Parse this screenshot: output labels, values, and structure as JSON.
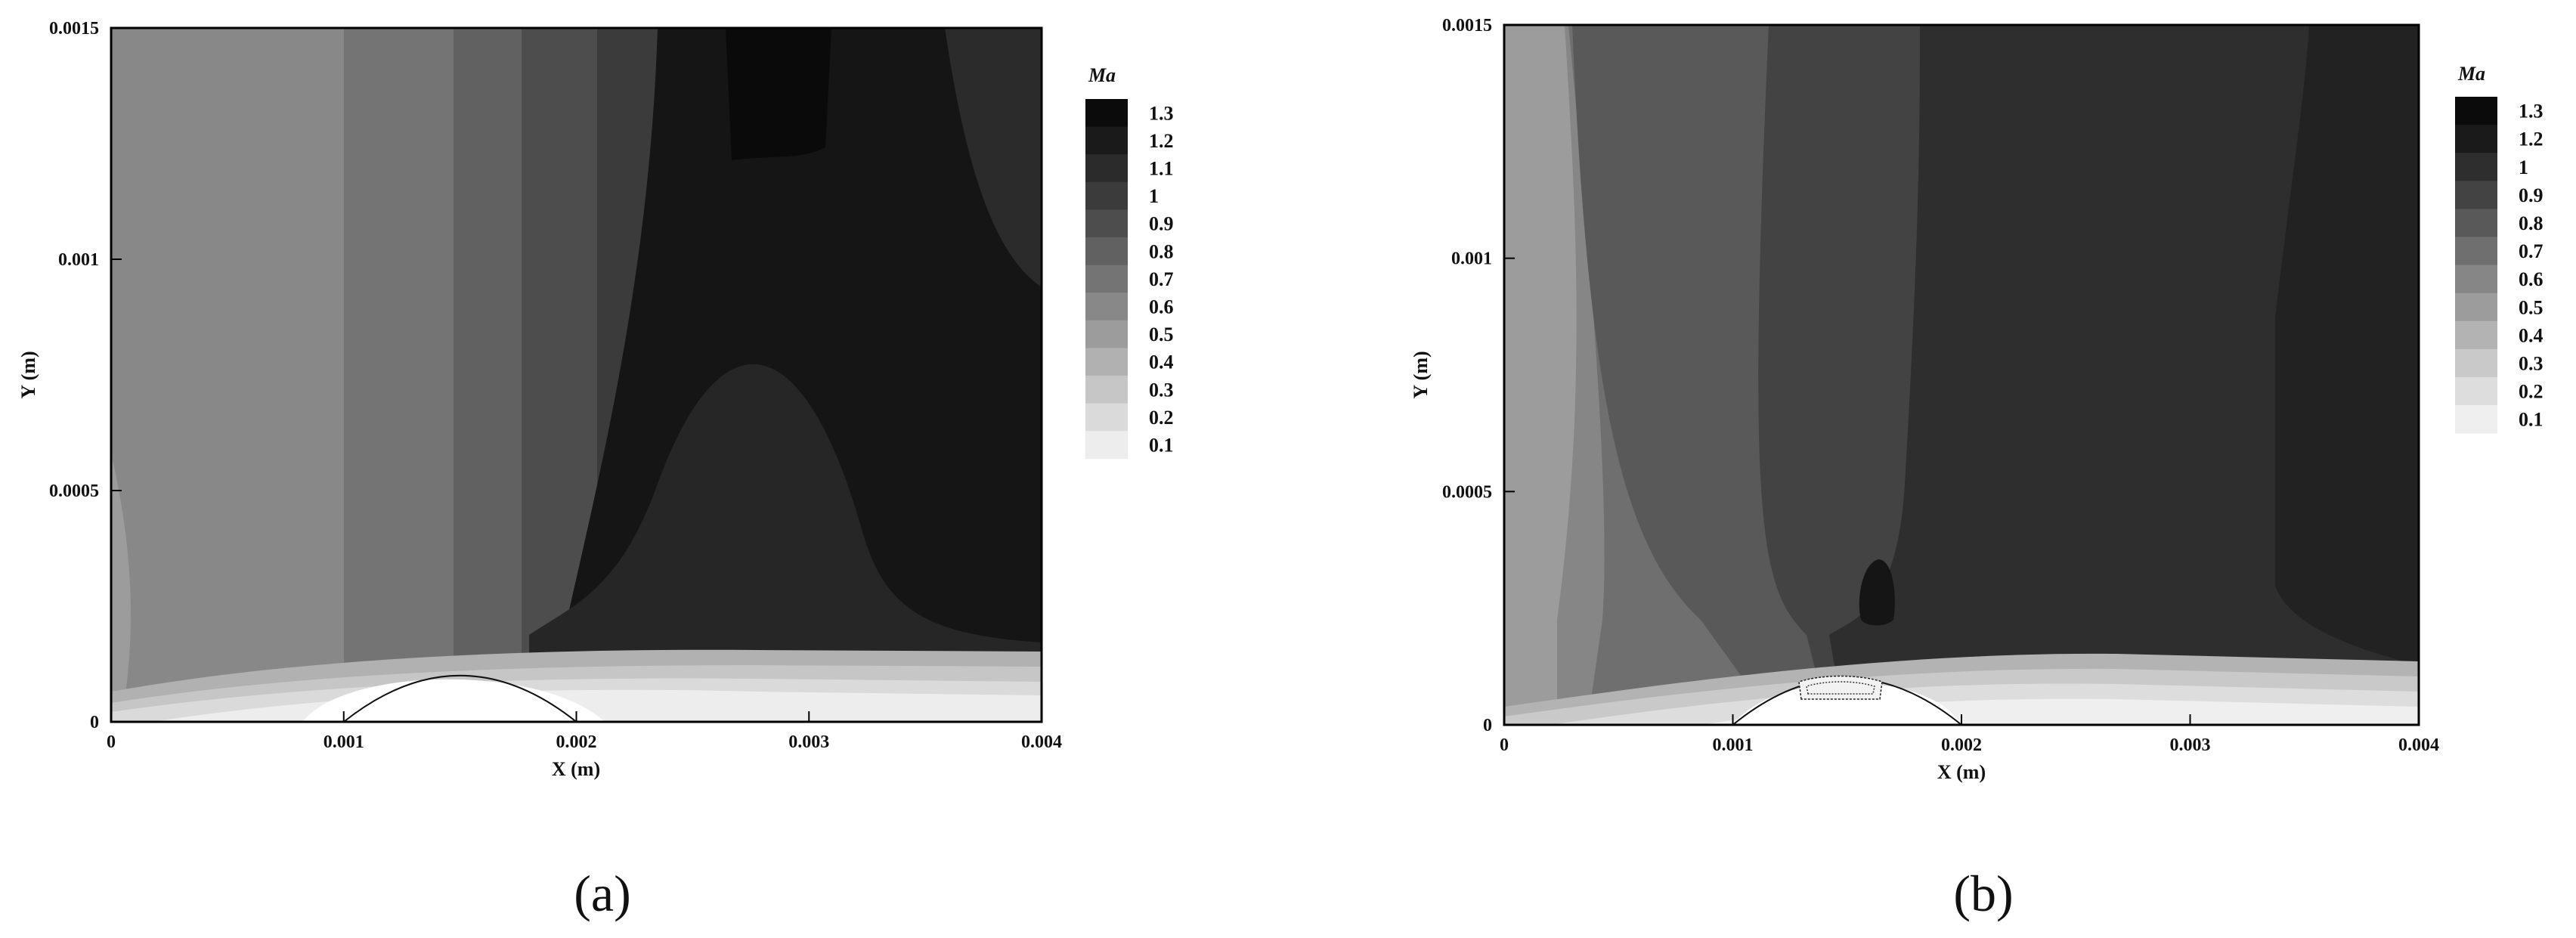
{
  "chart_data": [
    {
      "type": "heatmap",
      "caption": "(a)",
      "xlabel": "X (m)",
      "ylabel": "Y (m)",
      "xlim": [
        0,
        0.004
      ],
      "ylim": [
        0,
        0.0015
      ],
      "xticks": [
        "0",
        "0.001",
        "0.002",
        "0.003",
        "0.004"
      ],
      "yticks": [
        "0",
        "0.0005",
        "0.001",
        "0.0015"
      ],
      "legend": {
        "title": "Ma",
        "placement": "right",
        "levels": [
          "1.3",
          "1.2",
          "1.1",
          "1",
          "0.9",
          "0.8",
          "0.7",
          "0.6",
          "0.5",
          "0.4",
          "0.3",
          "0.2",
          "0.1"
        ],
        "colors": [
          "#0b0b0b",
          "#1a1a1a",
          "#2b2b2b",
          "#3b3b3b",
          "#4d4d4d",
          "#616161",
          "#747474",
          "#888888",
          "#9c9c9c",
          "#b1b1b1",
          "#c6c6c6",
          "#dadada",
          "#ededed"
        ]
      },
      "bump": {
        "x_start": 0.001,
        "x_end": 0.002,
        "height": 0.0001
      },
      "grid": false
    },
    {
      "type": "heatmap",
      "caption": "(b)",
      "xlabel": "X (m)",
      "ylabel": "Y (m)",
      "xlim": [
        0,
        0.004
      ],
      "ylim": [
        0,
        0.0015
      ],
      "xticks": [
        "0",
        "0.001",
        "0.002",
        "0.003",
        "0.004"
      ],
      "yticks": [
        "0",
        "0.0005",
        "0.001",
        "0.0015"
      ],
      "legend": {
        "title": "Ma",
        "placement": "right",
        "levels": [
          "1.3",
          "1.2",
          "1",
          "0.9",
          "0.8",
          "0.7",
          "0.6",
          "0.5",
          "0.4",
          "0.3",
          "0.2",
          "0.1"
        ],
        "colors": [
          "#0b0b0b",
          "#1a1a1a",
          "#2e2e2e",
          "#434343",
          "#595959",
          "#6f6f6f",
          "#868686",
          "#9c9c9c",
          "#b3b3b3",
          "#c9c9c9",
          "#dddddd",
          "#efefef"
        ]
      },
      "bump": {
        "x_start": 0.001,
        "x_end": 0.002,
        "height": 0.0001
      },
      "grid": false
    }
  ]
}
